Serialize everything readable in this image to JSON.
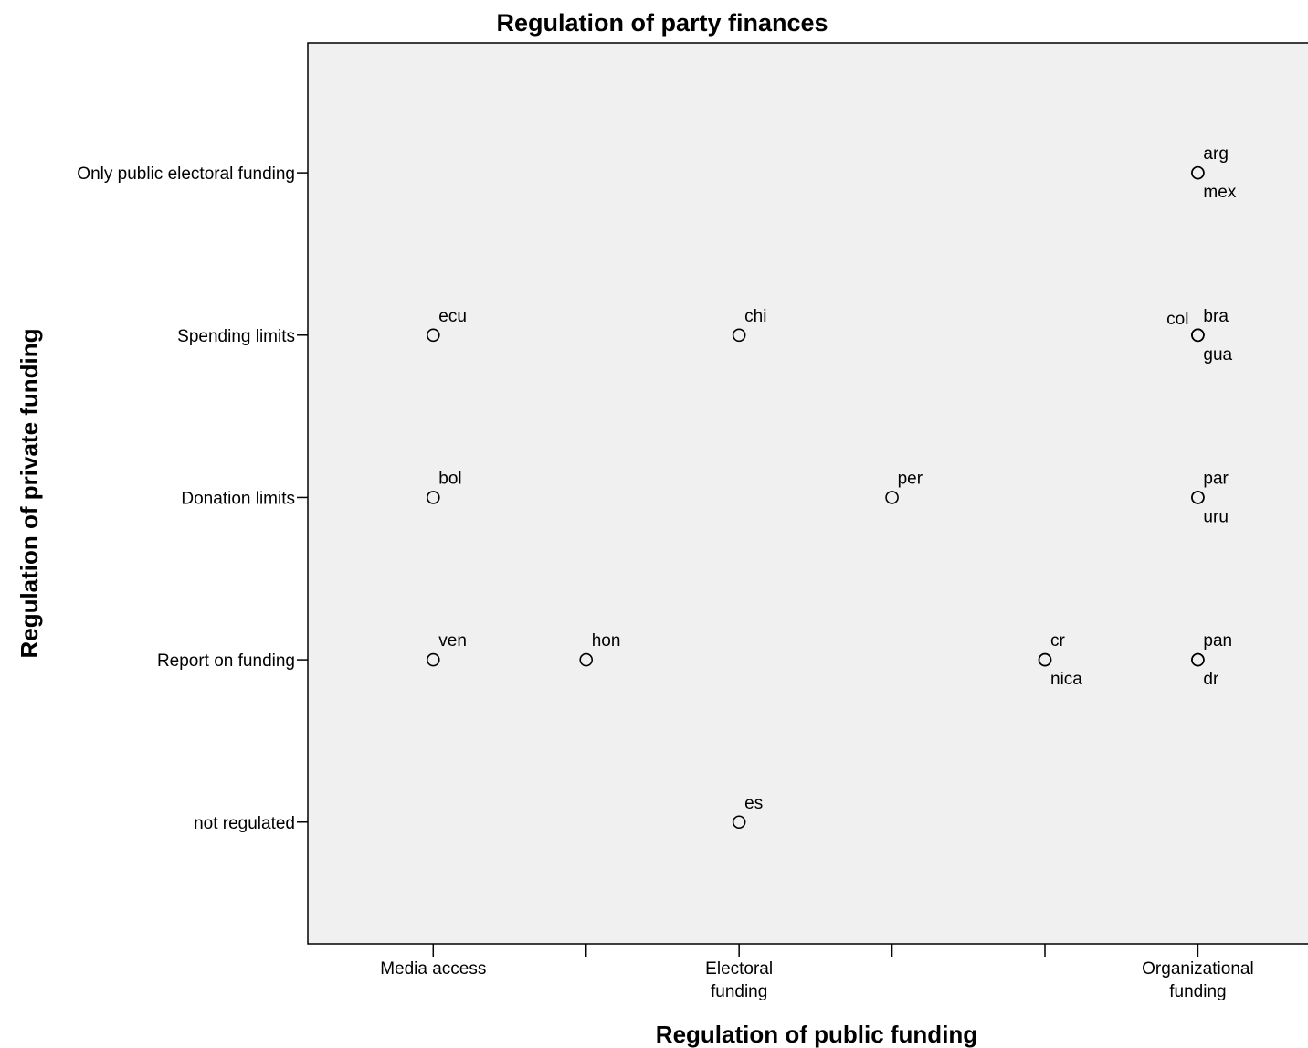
{
  "chart_data": {
    "type": "scatter",
    "title": "Regulation of party finances",
    "xlabel": "Regulation of public funding",
    "ylabel": "Regulation of private funding",
    "x_ticks": [
      {
        "value": 1,
        "label": [
          "Media access"
        ]
      },
      {
        "value": 2,
        "label": []
      },
      {
        "value": 3,
        "label": [
          "Electoral",
          "funding"
        ]
      },
      {
        "value": 4,
        "label": []
      },
      {
        "value": 5,
        "label": []
      },
      {
        "value": 6,
        "label": [
          "Organizational",
          "funding"
        ]
      }
    ],
    "y_ticks": [
      {
        "value": 0,
        "label": "not regulated"
      },
      {
        "value": 1,
        "label": "Report on funding"
      },
      {
        "value": 2,
        "label": "Donation limits"
      },
      {
        "value": 3,
        "label": "Spending limits"
      },
      {
        "value": 4,
        "label": "Only public electoral funding"
      }
    ],
    "xlim": [
      0.18,
      6.75
    ],
    "ylim": [
      -0.75,
      4.8
    ],
    "grid": false,
    "points": [
      {
        "x": 6,
        "y": 4,
        "label": "arg",
        "pos": "above"
      },
      {
        "x": 6,
        "y": 4,
        "label": "mex",
        "pos": "below"
      },
      {
        "x": 1,
        "y": 3,
        "label": "ecu",
        "pos": "above"
      },
      {
        "x": 3,
        "y": 3,
        "label": "chi",
        "pos": "above"
      },
      {
        "x": 6,
        "y": 3,
        "label": "col",
        "pos": "left"
      },
      {
        "x": 6,
        "y": 3,
        "label": "bra",
        "pos": "above"
      },
      {
        "x": 6,
        "y": 3,
        "label": "gua",
        "pos": "below"
      },
      {
        "x": 1,
        "y": 2,
        "label": "bol",
        "pos": "above"
      },
      {
        "x": 4,
        "y": 2,
        "label": "per",
        "pos": "above"
      },
      {
        "x": 6,
        "y": 2,
        "label": "par",
        "pos": "above"
      },
      {
        "x": 6,
        "y": 2,
        "label": "uru",
        "pos": "below"
      },
      {
        "x": 1,
        "y": 1,
        "label": "ven",
        "pos": "above"
      },
      {
        "x": 2,
        "y": 1,
        "label": "hon",
        "pos": "above"
      },
      {
        "x": 5,
        "y": 1,
        "label": "cr",
        "pos": "above"
      },
      {
        "x": 5,
        "y": 1,
        "label": "nica",
        "pos": "below"
      },
      {
        "x": 6,
        "y": 1,
        "label": "pan",
        "pos": "above"
      },
      {
        "x": 6,
        "y": 1,
        "label": "dr",
        "pos": "below"
      },
      {
        "x": 3,
        "y": 0,
        "label": "es",
        "pos": "above"
      }
    ]
  }
}
